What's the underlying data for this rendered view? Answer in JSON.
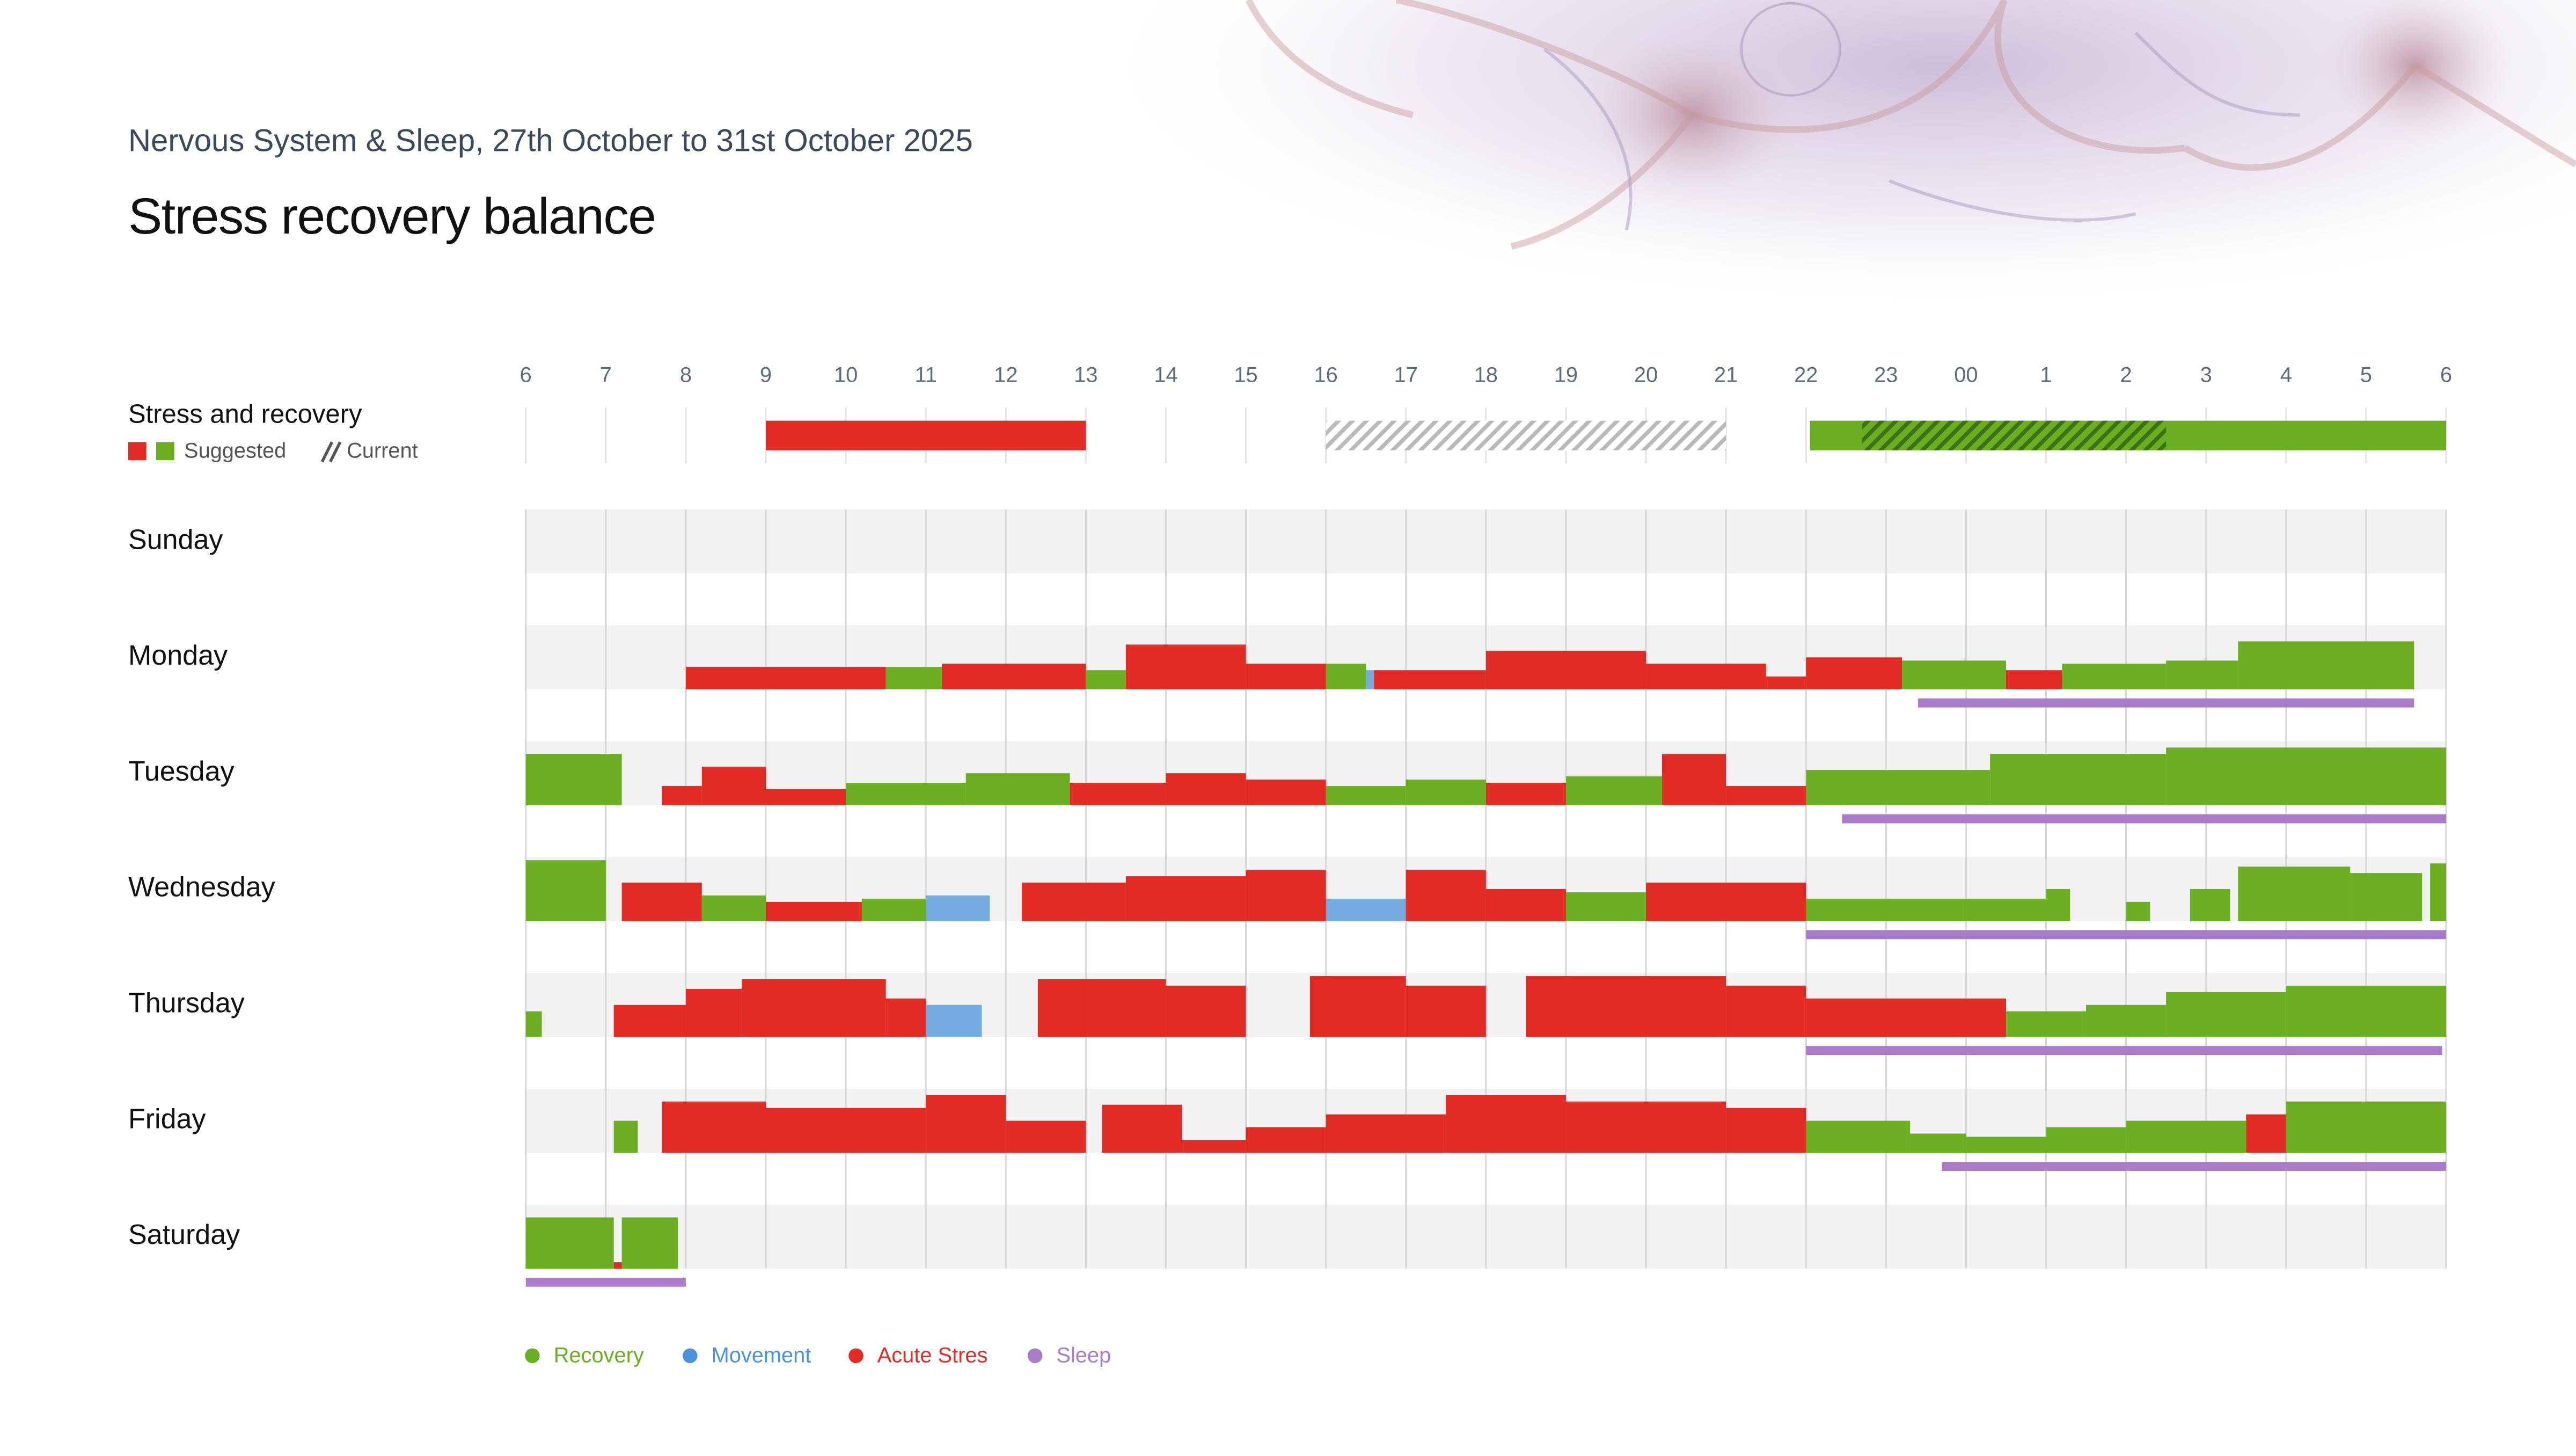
{
  "subtitle": "Nervous System & Sleep, 27th October to 31st October 2025",
  "title": "Stress recovery balance",
  "chart_data": {
    "type": "timeline",
    "hour_labels": [
      "6",
      "7",
      "8",
      "9",
      "10",
      "11",
      "12",
      "13",
      "14",
      "15",
      "16",
      "17",
      "18",
      "19",
      "20",
      "21",
      "22",
      "23",
      "00",
      "1",
      "2",
      "3",
      "4",
      "5",
      "6"
    ],
    "xlim": [
      0,
      24
    ],
    "ylim": [
      0,
      1
    ],
    "grid": true,
    "legend": [
      {
        "name": "Recovery",
        "color": "#6aaf22"
      },
      {
        "name": "Movement",
        "color": "#4a93db"
      },
      {
        "name": "Acute Stres",
        "color": "#e22b24"
      },
      {
        "name": "Sleep",
        "color": "#a97bc9"
      }
    ],
    "plan": {
      "label": "Stress and recovery",
      "legend_suggested": "Suggested",
      "legend_current": "Current",
      "suggested": [
        [
          [
            16.05,
            24
          ]
        ],
        [],
        [
          [
            3,
            7
          ]
        ]
      ],
      "current": [
        [
          10,
          15
        ],
        [
          16.7,
          20.5
        ]
      ]
    },
    "days": [
      {
        "name": "Sunday",
        "segments": [
          [],
          [],
          []
        ]
      },
      {
        "name": "Monday",
        "sleep": [
          17.4,
          23.6
        ],
        "segments": [
          [
            [
              4.5,
              5.2,
              0.35
            ],
            [
              7,
              7.5,
              0.3
            ],
            [
              10,
              10.5,
              0.4
            ],
            [
              17.2,
              18.5,
              0.45
            ],
            [
              19.2,
              20.5,
              0.4
            ],
            [
              20.5,
              21.4,
              0.45
            ],
            [
              21.4,
              23.6,
              0.75
            ]
          ],
          [
            [
              10.5,
              10.6,
              0.3
            ]
          ],
          [
            [
              2,
              4.5,
              0.35
            ],
            [
              5.2,
              7,
              0.4
            ],
            [
              7.5,
              9,
              0.7
            ],
            [
              9,
              10,
              0.4
            ],
            [
              10.6,
              12,
              0.3
            ],
            [
              12,
              14,
              0.6
            ],
            [
              14,
              15.5,
              0.4
            ],
            [
              15.5,
              16,
              0.2
            ],
            [
              16,
              17.2,
              0.5
            ],
            [
              18.5,
              19.2,
              0.3
            ]
          ]
        ]
      },
      {
        "name": "Tuesday",
        "sleep": [
          16.45,
          24
        ],
        "segments": [
          [
            [
              0,
              1.2,
              0.8
            ],
            [
              4,
              5.5,
              0.35
            ],
            [
              5.5,
              6.8,
              0.5
            ],
            [
              10,
              11,
              0.3
            ],
            [
              11,
              12,
              0.4
            ],
            [
              13,
              14.2,
              0.45
            ],
            [
              16,
              18.3,
              0.55
            ],
            [
              18.3,
              20.5,
              0.8
            ],
            [
              20.5,
              24,
              0.9
            ]
          ],
          [],
          [
            [
              1.7,
              2.2,
              0.3
            ],
            [
              2.2,
              3,
              0.6
            ],
            [
              3,
              4,
              0.25
            ],
            [
              6.8,
              8,
              0.35
            ],
            [
              8,
              9,
              0.5
            ],
            [
              9,
              10,
              0.4
            ],
            [
              12,
              13,
              0.35
            ],
            [
              14.2,
              15,
              0.8
            ],
            [
              15,
              16,
              0.3
            ]
          ]
        ]
      },
      {
        "name": "Wednesday",
        "sleep": [
          16,
          24
        ],
        "segments": [
          [
            [
              0,
              1,
              0.95
            ],
            [
              2.2,
              3,
              0.4
            ],
            [
              4.2,
              5,
              0.35
            ],
            [
              13,
              14,
              0.45
            ],
            [
              16,
              18,
              0.35
            ],
            [
              18,
              19,
              0.35
            ],
            [
              19,
              19.3,
              0.5
            ],
            [
              20,
              20.3,
              0.3
            ],
            [
              20.8,
              21.3,
              0.5
            ],
            [
              21.4,
              22.8,
              0.85
            ],
            [
              22.8,
              23.7,
              0.75
            ],
            [
              23.8,
              24,
              0.9
            ]
          ],
          [
            [
              5,
              5.8,
              0.4
            ],
            [
              10,
              11,
              0.35
            ]
          ],
          [
            [
              1.2,
              2.2,
              0.6
            ],
            [
              3,
              4.2,
              0.3
            ],
            [
              6.2,
              7.5,
              0.6
            ],
            [
              7.5,
              9,
              0.7
            ],
            [
              9,
              10,
              0.8
            ],
            [
              11,
              12,
              0.8
            ],
            [
              12,
              13,
              0.5
            ],
            [
              14,
              16,
              0.6
            ]
          ]
        ]
      },
      {
        "name": "Thursday",
        "sleep": [
          16,
          23.95
        ],
        "segments": [
          [
            [
              0,
              0.2,
              0.4
            ],
            [
              18.5,
              19.5,
              0.4
            ],
            [
              19.5,
              20.5,
              0.5
            ],
            [
              20.5,
              22,
              0.7
            ],
            [
              22,
              24,
              0.8
            ]
          ],
          [
            [
              5,
              5.7,
              0.5
            ]
          ],
          [
            [
              1.1,
              2,
              0.5
            ],
            [
              2,
              2.7,
              0.75
            ],
            [
              2.7,
              4.5,
              0.9
            ],
            [
              4.5,
              5,
              0.6
            ],
            [
              6.4,
              7,
              0.9
            ],
            [
              7,
              8,
              0.9
            ],
            [
              8,
              9,
              0.8
            ],
            [
              9.8,
              11,
              0.95
            ],
            [
              11,
              12,
              0.8
            ],
            [
              12.5,
              15,
              0.95
            ],
            [
              15,
              16,
              0.8
            ],
            [
              16,
              18.5,
              0.6
            ]
          ]
        ]
      },
      {
        "name": "Friday",
        "sleep": [
          17.7,
          24
        ],
        "segments": [
          [
            [
              1.1,
              1.4,
              0.5
            ],
            [
              16,
              17.3,
              0.5
            ],
            [
              17.3,
              18,
              0.3
            ],
            [
              18,
              19,
              0.25
            ],
            [
              19,
              20,
              0.4
            ],
            [
              20,
              21.5,
              0.5
            ],
            [
              22,
              24,
              0.8
            ]
          ],
          [],
          [
            [
              1.7,
              3,
              0.8
            ],
            [
              3,
              5,
              0.7
            ],
            [
              5,
              6,
              0.9
            ],
            [
              6,
              7,
              0.5
            ],
            [
              7.2,
              8.2,
              0.75
            ],
            [
              8.2,
              9,
              0.2
            ],
            [
              9,
              10,
              0.4
            ],
            [
              10,
              11.5,
              0.6
            ],
            [
              11.5,
              13,
              0.9
            ],
            [
              13,
              15,
              0.8
            ],
            [
              15,
              16,
              0.7
            ],
            [
              21.5,
              22,
              0.6
            ]
          ]
        ]
      },
      {
        "name": "Saturday",
        "sleep": [
          0,
          2
        ],
        "segments": [
          [
            [
              0,
              1.1,
              0.8
            ],
            [
              1.2,
              1.9,
              0.8
            ]
          ],
          [],
          [
            [
              1.1,
              1.2,
              0.1
            ]
          ]
        ]
      }
    ]
  }
}
